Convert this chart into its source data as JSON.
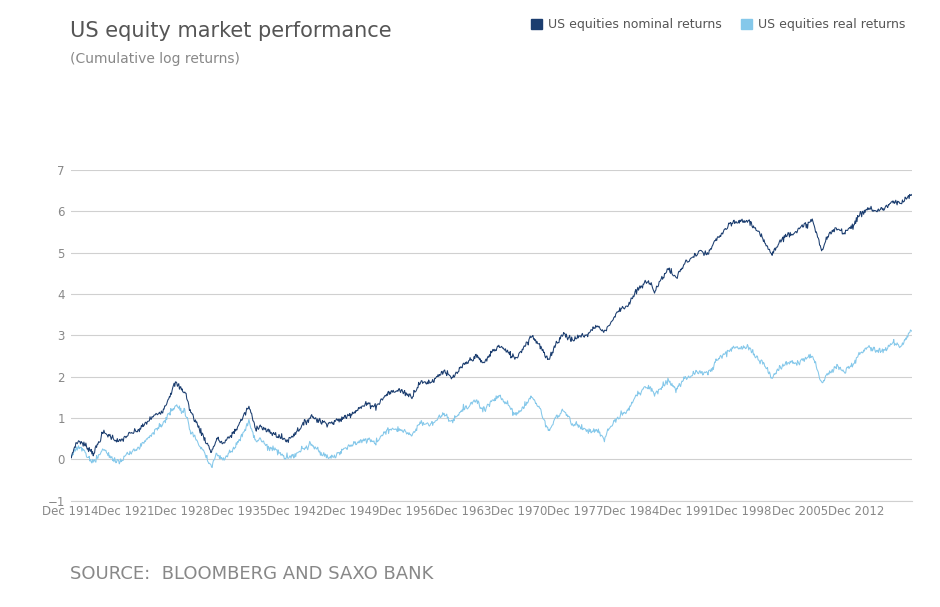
{
  "title": "US equity market performance",
  "subtitle": "(Cumulative log returns)",
  "source_text": "SOURCE:  BLOOMBERG AND SAXO BANK",
  "legend_nominal": "US equities nominal returns",
  "legend_real": "US equities real returns",
  "color_nominal": "#1b3d6f",
  "color_real": "#85c8ea",
  "background_color": "#ffffff",
  "ylim": [
    -1,
    7
  ],
  "yticks": [
    -1,
    0,
    1,
    2,
    3,
    4,
    5,
    6,
    7
  ],
  "xtick_labels": [
    "Dec 1914",
    "Dec 1921",
    "Dec 1928",
    "Dec 1935",
    "Dec 1942",
    "Dec 1949",
    "Dec 1956",
    "Dec 1963",
    "Dec 1970",
    "Dec 1977",
    "Dec 1984",
    "Dec 1991",
    "Dec 1998",
    "Dec 2005",
    "Dec 2012"
  ],
  "grid_color": "#d0d0d0",
  "title_fontsize": 15,
  "subtitle_fontsize": 10,
  "tick_fontsize": 8.5,
  "source_fontsize": 13,
  "legend_fontsize": 9
}
